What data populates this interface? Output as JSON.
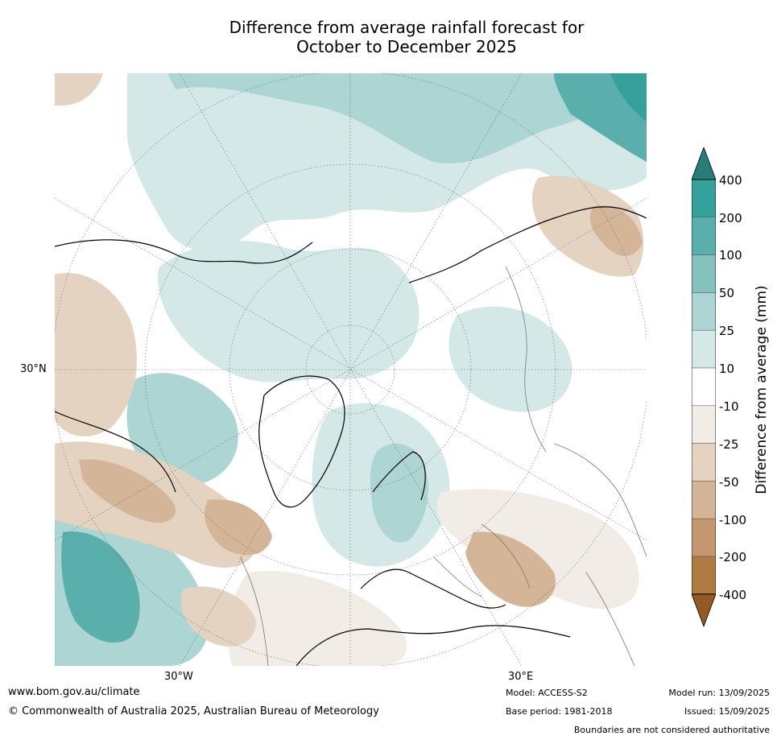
{
  "title_line1": "Difference from average rainfall forecast for",
  "title_line2": "October to December 2025",
  "map": {
    "lat_label": "30°N",
    "lon_labels": [
      "30°W",
      "30°E"
    ]
  },
  "colorbar": {
    "label": "Difference from average (mm)",
    "ticks": [
      "400",
      "200",
      "100",
      "50",
      "25",
      "10",
      "-10",
      "-25",
      "-50",
      "-100",
      "-200",
      "-400"
    ],
    "colors": {
      "extend_high": "#2a7c79",
      "b400": "#35a09c",
      "b200": "#5aaeac",
      "b100": "#84c1bf",
      "b50": "#acd5d3",
      "b25": "#d4e9e7",
      "b10": "#ffffff",
      "bm10": "#f1ede6",
      "bm25": "#e5d3c2",
      "bm50": "#d4b597",
      "bm100": "#c49770",
      "bm200": "#b07a45",
      "extend_low": "#935a23"
    }
  },
  "footer": {
    "website": "www.bom.gov.au/climate",
    "copyright": "© Commonwealth of Australia 2025, Australian Bureau of Meteorology",
    "model": "Model: ACCESS-S2",
    "base_period": "Base period: 1981-2018",
    "model_run": "Model run: 13/09/2025",
    "issued": "Issued: 15/09/2025",
    "disclaimer": "Boundaries are not considered authoritative"
  }
}
